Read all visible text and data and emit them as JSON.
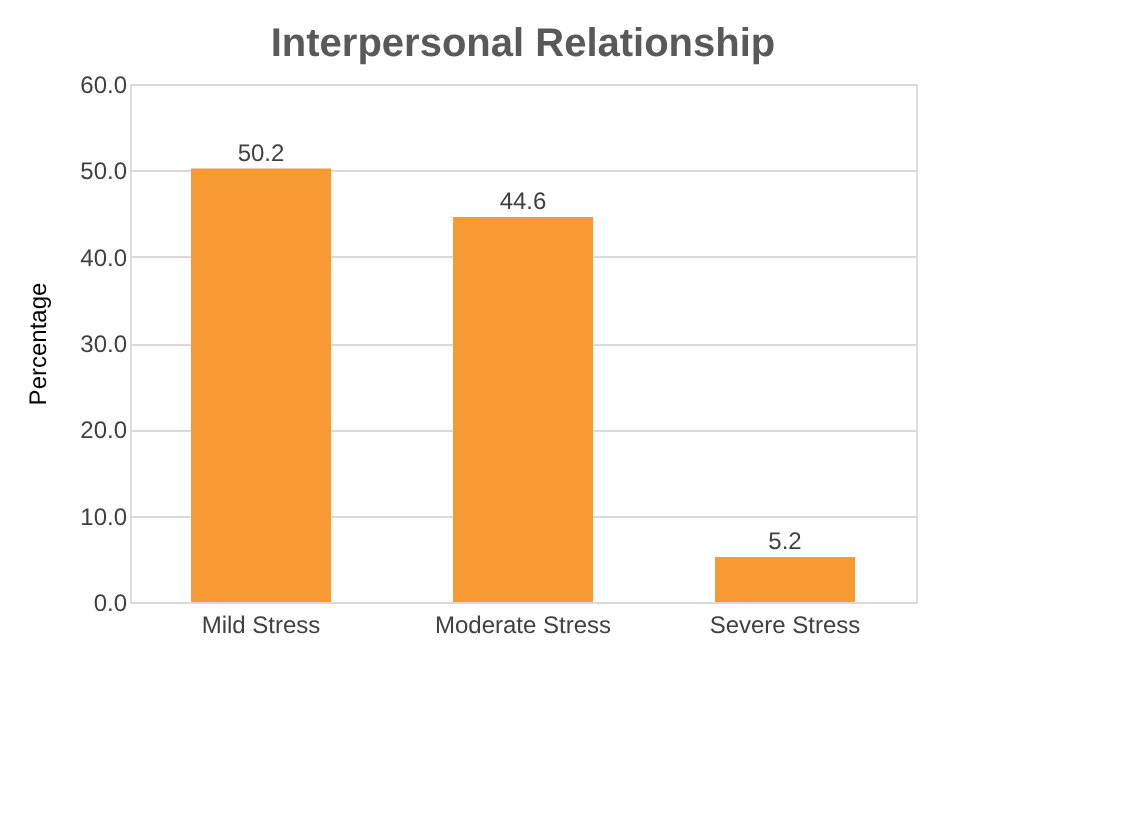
{
  "chart_data": {
    "type": "bar",
    "title": "Interpersonal Relationship",
    "ylabel": "Percentage",
    "categories": [
      "Mild Stress",
      "Moderate Stress",
      "Severe Stress"
    ],
    "values": [
      50.2,
      44.6,
      5.2
    ],
    "color": "#f79a33",
    "ylim": [
      0,
      60
    ],
    "yticks": [
      {
        "value": 0,
        "label": "0.0"
      },
      {
        "value": 10,
        "label": "10.0"
      },
      {
        "value": 20,
        "label": "20.0"
      },
      {
        "value": 30,
        "label": "30.0"
      },
      {
        "value": 40,
        "label": "40.0"
      },
      {
        "value": 50,
        "label": "50.0"
      },
      {
        "value": 60,
        "label": "60.0"
      }
    ],
    "grid": "y",
    "data_labels": true
  }
}
